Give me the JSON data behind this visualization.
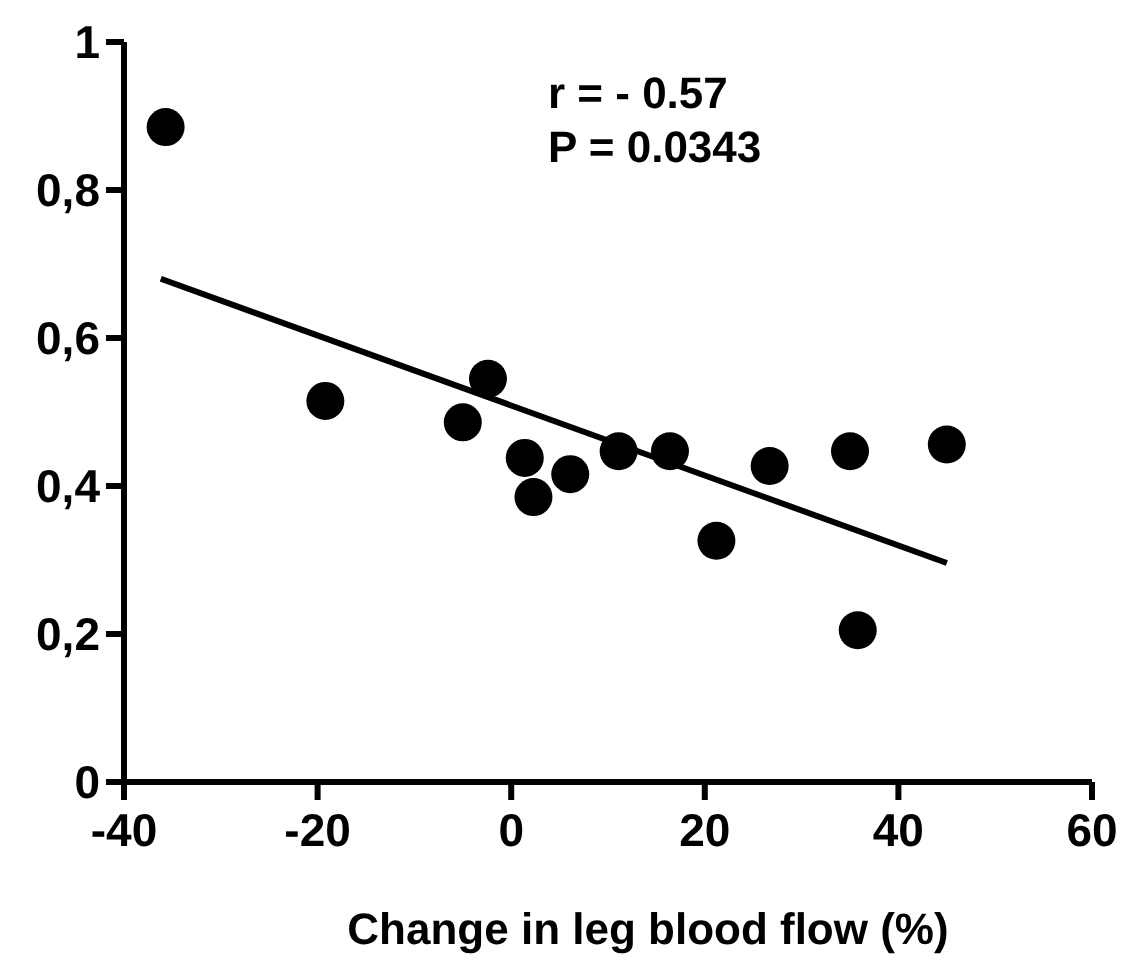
{
  "chart_data": {
    "type": "scatter",
    "xlabel": "Change in leg blood flow (%)",
    "xlim": [
      -40,
      60
    ],
    "xticks": [
      -40,
      -20,
      0,
      20,
      40,
      60
    ],
    "ylim": [
      0,
      1
    ],
    "yticks": [
      0,
      {
        "value": 0.2,
        "label": "0,2"
      },
      {
        "value": 0.4,
        "label": "0,4"
      },
      {
        "value": 0.6,
        "label": "0,6"
      },
      {
        "value": 0.8,
        "label": "0,8"
      },
      1
    ],
    "marker": "circle",
    "grid": false,
    "annotations": [
      "r  = - 0.57",
      "P =  0.0343"
    ],
    "series": [
      {
        "color": "#000000",
        "x": [
          -35.7,
          -19.2,
          -5.0,
          -2.4,
          1.4,
          2.3,
          6.1,
          11.1,
          16.4,
          21.2,
          26.7,
          35.0,
          35.8,
          45.0
        ],
        "values": [
          0.885,
          0.515,
          0.486,
          0.545,
          0.438,
          0.385,
          0.416,
          0.447,
          0.447,
          0.326,
          0.427,
          0.447,
          0.205,
          0.456
        ]
      },
      {
        "type": "line",
        "color": "#000000",
        "x": [
          -36.2,
          45.0
        ],
        "values": [
          0.68,
          0.296
        ],
        "marker": "none"
      }
    ]
  }
}
